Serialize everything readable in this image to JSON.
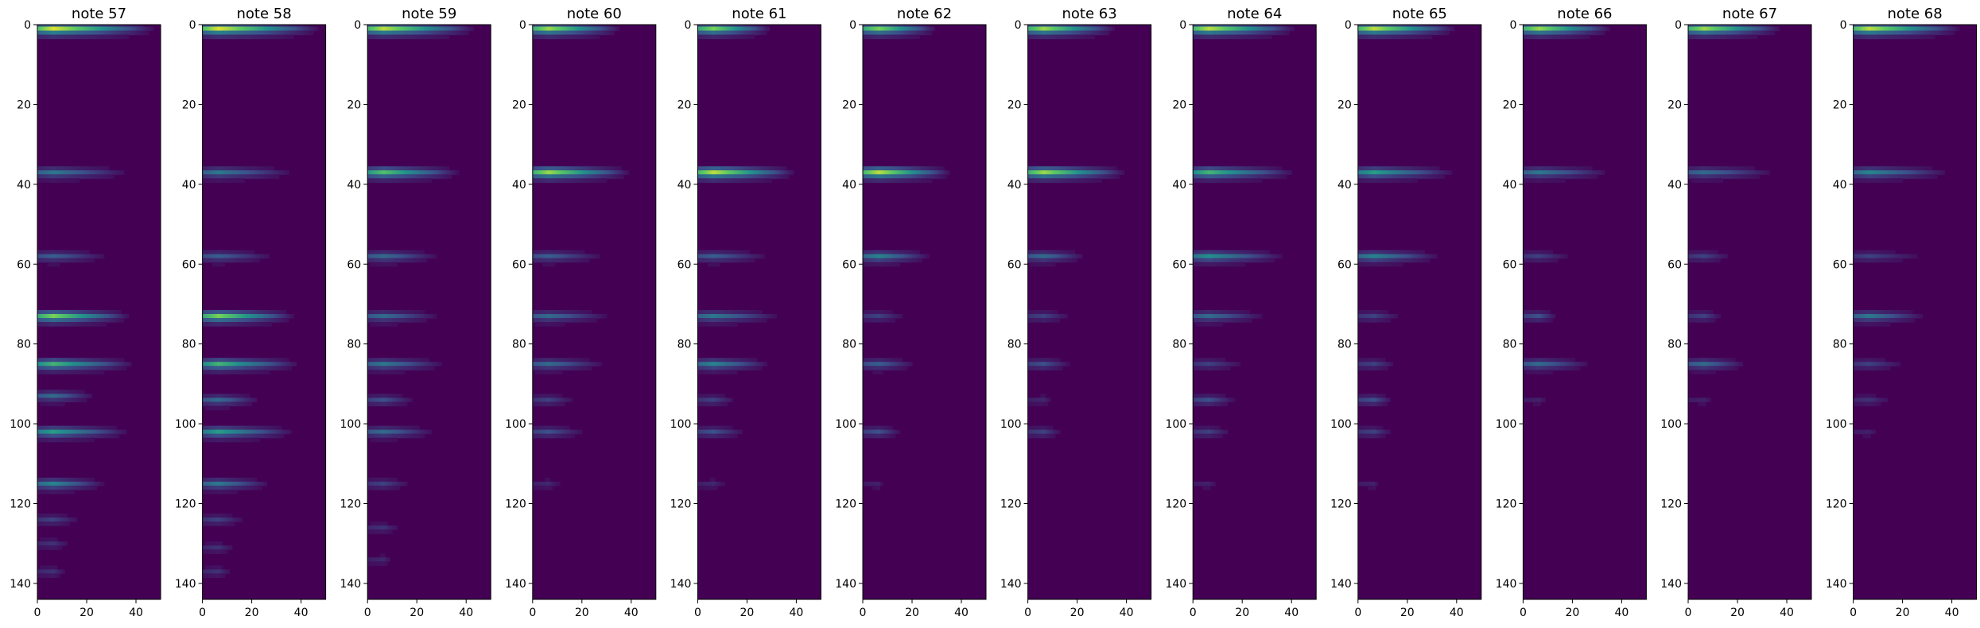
{
  "figure": {
    "background": "#ffffff",
    "colormap": "viridis",
    "colormap_stops": [
      "#440154",
      "#3b528b",
      "#21918c",
      "#5ec962",
      "#fde725"
    ]
  },
  "chart_data": [
    {
      "type": "heatmap",
      "title": "note 57",
      "xlim": [
        0,
        50
      ],
      "ylim": [
        144,
        0
      ],
      "xticks": [
        0,
        20,
        40
      ],
      "xtick_labels": [
        "0",
        "20",
        "40"
      ],
      "yticks": [
        0,
        20,
        40,
        60,
        80,
        100,
        120,
        140
      ],
      "ytick_labels": [
        "0",
        "20",
        "40",
        "60",
        "80",
        "100",
        "120",
        "140"
      ],
      "bands": [
        {
          "row": 1,
          "peak": 0.95,
          "length": 48
        },
        {
          "row": 37,
          "peak": 0.4,
          "length": 38
        },
        {
          "row": 58,
          "peak": 0.3,
          "length": 30
        },
        {
          "row": 73,
          "peak": 0.8,
          "length": 38
        },
        {
          "row": 85,
          "peak": 0.65,
          "length": 40
        },
        {
          "row": 93,
          "peak": 0.35,
          "length": 24
        },
        {
          "row": 102,
          "peak": 0.55,
          "length": 38
        },
        {
          "row": 115,
          "peak": 0.45,
          "length": 28
        },
        {
          "row": 124,
          "peak": 0.2,
          "length": 18
        },
        {
          "row": 130,
          "peak": 0.15,
          "length": 14
        },
        {
          "row": 137,
          "peak": 0.15,
          "length": 12
        }
      ]
    },
    {
      "type": "heatmap",
      "title": "note 58",
      "xlim": [
        0,
        50
      ],
      "ylim": [
        144,
        0
      ],
      "xticks": [
        0,
        20,
        40
      ],
      "xtick_labels": [
        "0",
        "20",
        "40"
      ],
      "yticks": [
        0,
        20,
        40,
        60,
        80,
        100,
        120,
        140
      ],
      "ytick_labels": [
        "0",
        "20",
        "40",
        "60",
        "80",
        "100",
        "120",
        "140"
      ],
      "bands": [
        {
          "row": 1,
          "peak": 0.95,
          "length": 48
        },
        {
          "row": 37,
          "peak": 0.4,
          "length": 38
        },
        {
          "row": 58,
          "peak": 0.3,
          "length": 30
        },
        {
          "row": 73,
          "peak": 0.8,
          "length": 38
        },
        {
          "row": 85,
          "peak": 0.65,
          "length": 40
        },
        {
          "row": 94,
          "peak": 0.35,
          "length": 24
        },
        {
          "row": 102,
          "peak": 0.55,
          "length": 38
        },
        {
          "row": 115,
          "peak": 0.4,
          "length": 28
        },
        {
          "row": 124,
          "peak": 0.2,
          "length": 18
        },
        {
          "row": 131,
          "peak": 0.15,
          "length": 14
        },
        {
          "row": 137,
          "peak": 0.15,
          "length": 12
        }
      ]
    },
    {
      "type": "heatmap",
      "title": "note 59",
      "xlim": [
        0,
        50
      ],
      "ylim": [
        144,
        0
      ],
      "xticks": [
        0,
        20,
        40
      ],
      "xtick_labels": [
        "0",
        "20",
        "40"
      ],
      "yticks": [
        0,
        20,
        40,
        60,
        80,
        100,
        120,
        140
      ],
      "ytick_labels": [
        "0",
        "20",
        "40",
        "60",
        "80",
        "100",
        "120",
        "140"
      ],
      "bands": [
        {
          "row": 1,
          "peak": 0.9,
          "length": 44
        },
        {
          "row": 37,
          "peak": 0.7,
          "length": 38
        },
        {
          "row": 58,
          "peak": 0.35,
          "length": 30
        },
        {
          "row": 73,
          "peak": 0.35,
          "length": 30
        },
        {
          "row": 85,
          "peak": 0.4,
          "length": 32
        },
        {
          "row": 94,
          "peak": 0.25,
          "length": 20
        },
        {
          "row": 102,
          "peak": 0.35,
          "length": 28
        },
        {
          "row": 115,
          "peak": 0.2,
          "length": 18
        },
        {
          "row": 126,
          "peak": 0.15,
          "length": 14
        },
        {
          "row": 134,
          "peak": 0.12,
          "length": 10
        }
      ]
    },
    {
      "type": "heatmap",
      "title": "note 60",
      "xlim": [
        0,
        50
      ],
      "ylim": [
        144,
        0
      ],
      "xticks": [
        0,
        20,
        40
      ],
      "xtick_labels": [
        "0",
        "20",
        "40"
      ],
      "yticks": [
        0,
        20,
        40,
        60,
        80,
        100,
        120,
        140
      ],
      "ytick_labels": [
        "0",
        "20",
        "40",
        "60",
        "80",
        "100",
        "120",
        "140"
      ],
      "bands": [
        {
          "row": 1,
          "peak": 0.85,
          "length": 36
        },
        {
          "row": 37,
          "peak": 0.85,
          "length": 40
        },
        {
          "row": 58,
          "peak": 0.3,
          "length": 30
        },
        {
          "row": 73,
          "peak": 0.35,
          "length": 32
        },
        {
          "row": 85,
          "peak": 0.35,
          "length": 30
        },
        {
          "row": 94,
          "peak": 0.2,
          "length": 18
        },
        {
          "row": 102,
          "peak": 0.25,
          "length": 22
        },
        {
          "row": 115,
          "peak": 0.12,
          "length": 12
        }
      ]
    },
    {
      "type": "heatmap",
      "title": "note 61",
      "xlim": [
        0,
        50
      ],
      "ylim": [
        144,
        0
      ],
      "xticks": [
        0,
        20,
        40
      ],
      "xtick_labels": [
        "0",
        "20",
        "40"
      ],
      "yticks": [
        0,
        20,
        40,
        60,
        80,
        100,
        120,
        140
      ],
      "ytick_labels": [
        "0",
        "20",
        "40",
        "60",
        "80",
        "100",
        "120",
        "140"
      ],
      "bands": [
        {
          "row": 1,
          "peak": 0.8,
          "length": 30
        },
        {
          "row": 37,
          "peak": 0.9,
          "length": 40
        },
        {
          "row": 58,
          "peak": 0.3,
          "length": 30
        },
        {
          "row": 73,
          "peak": 0.4,
          "length": 34
        },
        {
          "row": 85,
          "peak": 0.45,
          "length": 30
        },
        {
          "row": 94,
          "peak": 0.2,
          "length": 16
        },
        {
          "row": 102,
          "peak": 0.25,
          "length": 20
        },
        {
          "row": 115,
          "peak": 0.12,
          "length": 12
        }
      ]
    },
    {
      "type": "heatmap",
      "title": "note 62",
      "xlim": [
        0,
        50
      ],
      "ylim": [
        144,
        0
      ],
      "xticks": [
        0,
        20,
        40
      ],
      "xtick_labels": [
        "0",
        "20",
        "40"
      ],
      "yticks": [
        0,
        20,
        40,
        60,
        80,
        100,
        120,
        140
      ],
      "ytick_labels": [
        "0",
        "20",
        "40",
        "60",
        "80",
        "100",
        "120",
        "140"
      ],
      "bands": [
        {
          "row": 1,
          "peak": 0.8,
          "length": 30
        },
        {
          "row": 37,
          "peak": 0.9,
          "length": 36
        },
        {
          "row": 58,
          "peak": 0.45,
          "length": 28
        },
        {
          "row": 73,
          "peak": 0.2,
          "length": 18
        },
        {
          "row": 85,
          "peak": 0.3,
          "length": 22
        },
        {
          "row": 102,
          "peak": 0.25,
          "length": 16
        },
        {
          "row": 115,
          "peak": 0.1,
          "length": 8
        }
      ]
    },
    {
      "type": "heatmap",
      "title": "note 63",
      "xlim": [
        0,
        50
      ],
      "ylim": [
        144,
        0
      ],
      "xticks": [
        0,
        20,
        40
      ],
      "xtick_labels": [
        "0",
        "20",
        "40"
      ],
      "yticks": [
        0,
        20,
        40,
        60,
        80,
        100,
        120,
        140
      ],
      "ytick_labels": [
        "0",
        "20",
        "40",
        "60",
        "80",
        "100",
        "120",
        "140"
      ],
      "bands": [
        {
          "row": 1,
          "peak": 0.85,
          "length": 36
        },
        {
          "row": 37,
          "peak": 0.85,
          "length": 40
        },
        {
          "row": 58,
          "peak": 0.35,
          "length": 24
        },
        {
          "row": 73,
          "peak": 0.2,
          "length": 18
        },
        {
          "row": 85,
          "peak": 0.25,
          "length": 18
        },
        {
          "row": 94,
          "peak": 0.12,
          "length": 10
        },
        {
          "row": 102,
          "peak": 0.2,
          "length": 14
        }
      ]
    },
    {
      "type": "heatmap",
      "title": "note 64",
      "xlim": [
        0,
        50
      ],
      "ylim": [
        144,
        0
      ],
      "xticks": [
        0,
        20,
        40
      ],
      "xtick_labels": [
        "0",
        "20",
        "40"
      ],
      "yticks": [
        0,
        20,
        40,
        60,
        80,
        100,
        120,
        140
      ],
      "ytick_labels": [
        "0",
        "20",
        "40",
        "60",
        "80",
        "100",
        "120",
        "140"
      ],
      "bands": [
        {
          "row": 1,
          "peak": 0.9,
          "length": 42
        },
        {
          "row": 37,
          "peak": 0.65,
          "length": 42
        },
        {
          "row": 58,
          "peak": 0.5,
          "length": 38
        },
        {
          "row": 73,
          "peak": 0.35,
          "length": 30
        },
        {
          "row": 85,
          "peak": 0.2,
          "length": 22
        },
        {
          "row": 94,
          "peak": 0.25,
          "length": 18
        },
        {
          "row": 102,
          "peak": 0.2,
          "length": 16
        },
        {
          "row": 115,
          "peak": 0.1,
          "length": 10
        }
      ]
    },
    {
      "type": "heatmap",
      "title": "note 65",
      "xlim": [
        0,
        50
      ],
      "ylim": [
        144,
        0
      ],
      "xticks": [
        0,
        20,
        40
      ],
      "xtick_labels": [
        "0",
        "20",
        "40"
      ],
      "yticks": [
        0,
        20,
        40,
        60,
        80,
        100,
        120,
        140
      ],
      "ytick_labels": [
        "0",
        "20",
        "40",
        "60",
        "80",
        "100",
        "120",
        "140"
      ],
      "bands": [
        {
          "row": 1,
          "peak": 0.9,
          "length": 40
        },
        {
          "row": 37,
          "peak": 0.55,
          "length": 40
        },
        {
          "row": 58,
          "peak": 0.45,
          "length": 34
        },
        {
          "row": 73,
          "peak": 0.2,
          "length": 18
        },
        {
          "row": 85,
          "peak": 0.2,
          "length": 16
        },
        {
          "row": 94,
          "peak": 0.25,
          "length": 14
        },
        {
          "row": 102,
          "peak": 0.2,
          "length": 14
        },
        {
          "row": 115,
          "peak": 0.1,
          "length": 8
        }
      ]
    },
    {
      "type": "heatmap",
      "title": "note 66",
      "xlim": [
        0,
        50
      ],
      "ylim": [
        144,
        0
      ],
      "xticks": [
        0,
        20,
        40
      ],
      "xtick_labels": [
        "0",
        "20",
        "40"
      ],
      "yticks": [
        0,
        20,
        40,
        60,
        80,
        100,
        120,
        140
      ],
      "ytick_labels": [
        "0",
        "20",
        "40",
        "60",
        "80",
        "100",
        "120",
        "140"
      ],
      "bands": [
        {
          "row": 1,
          "peak": 0.85,
          "length": 36
        },
        {
          "row": 37,
          "peak": 0.4,
          "length": 36
        },
        {
          "row": 58,
          "peak": 0.2,
          "length": 20
        },
        {
          "row": 73,
          "peak": 0.25,
          "length": 14
        },
        {
          "row": 85,
          "peak": 0.35,
          "length": 28
        },
        {
          "row": 94,
          "peak": 0.1,
          "length": 10
        }
      ]
    },
    {
      "type": "heatmap",
      "title": "note 67",
      "xlim": [
        0,
        50
      ],
      "ylim": [
        144,
        0
      ],
      "xticks": [
        0,
        20,
        40
      ],
      "xtick_labels": [
        "0",
        "20",
        "40"
      ],
      "yticks": [
        0,
        20,
        40,
        60,
        80,
        100,
        120,
        140
      ],
      "ytick_labels": [
        "0",
        "20",
        "40",
        "60",
        "80",
        "100",
        "120",
        "140"
      ],
      "bands": [
        {
          "row": 1,
          "peak": 0.85,
          "length": 38
        },
        {
          "row": 37,
          "peak": 0.35,
          "length": 36
        },
        {
          "row": 58,
          "peak": 0.2,
          "length": 18
        },
        {
          "row": 73,
          "peak": 0.2,
          "length": 14
        },
        {
          "row": 85,
          "peak": 0.35,
          "length": 24
        },
        {
          "row": 94,
          "peak": 0.1,
          "length": 10
        }
      ]
    },
    {
      "type": "heatmap",
      "title": "note 68",
      "xlim": [
        0,
        50
      ],
      "ylim": [
        144,
        0
      ],
      "xticks": [
        0,
        20,
        40
      ],
      "xtick_labels": [
        "0",
        "20",
        "40"
      ],
      "yticks": [
        0,
        20,
        40,
        60,
        80,
        100,
        120,
        140
      ],
      "ytick_labels": [
        "0",
        "20",
        "40",
        "60",
        "80",
        "100",
        "120",
        "140"
      ],
      "bands": [
        {
          "row": 1,
          "peak": 0.9,
          "length": 44
        },
        {
          "row": 37,
          "peak": 0.45,
          "length": 40
        },
        {
          "row": 58,
          "peak": 0.2,
          "length": 30
        },
        {
          "row": 73,
          "peak": 0.4,
          "length": 30
        },
        {
          "row": 85,
          "peak": 0.2,
          "length": 22
        },
        {
          "row": 94,
          "peak": 0.15,
          "length": 16
        },
        {
          "row": 102,
          "peak": 0.1,
          "length": 10
        }
      ]
    }
  ]
}
